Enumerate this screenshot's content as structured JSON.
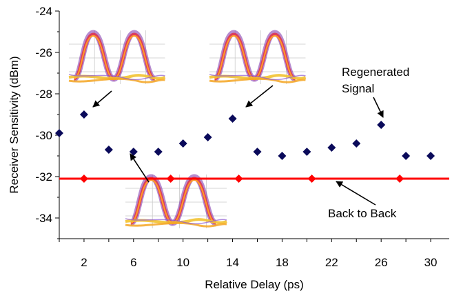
{
  "chart_data": {
    "type": "scatter",
    "title": "",
    "xlabel": "Relative Delay (ps)",
    "ylabel": "Receiver Sensitivity (dBm)",
    "xlim": [
      0,
      31.5
    ],
    "ylim": [
      -35,
      -24
    ],
    "x_ticks": [
      2,
      6,
      10,
      14,
      18,
      22,
      26,
      30
    ],
    "x_tick_labels": [
      "2",
      "6",
      "10",
      "14",
      "18",
      "22",
      "26",
      "30"
    ],
    "y_ticks": [
      -24,
      -26,
      -28,
      -30,
      -32,
      -34
    ],
    "y_tick_labels": [
      "-24",
      "-26",
      "-28",
      "-30",
      "-32",
      "-34"
    ],
    "grid": false,
    "series": [
      {
        "name": "Regenerated Signal",
        "marker": "diamond",
        "color": "#0a0a5a",
        "x": [
          0,
          2,
          4,
          6,
          8,
          10,
          12,
          14,
          16,
          18,
          20,
          22,
          24,
          26,
          28,
          30
        ],
        "y": [
          -29.9,
          -29.0,
          -30.7,
          -30.8,
          -30.8,
          -30.4,
          -30.1,
          -29.2,
          -30.8,
          -31.0,
          -30.8,
          -30.6,
          -30.4,
          -29.5,
          -31.0,
          -31.0
        ]
      },
      {
        "name": "Back to Back",
        "marker": "diamond",
        "line": true,
        "color": "#ff0000",
        "x": [
          2,
          9,
          14.5,
          20.4,
          27.5
        ],
        "y": [
          -32.1,
          -32.1,
          -32.1,
          -32.1,
          -32.1
        ]
      }
    ],
    "annotations": [
      {
        "lines": [
          "Regenerated",
          "Signal"
        ]
      },
      {
        "lines": [
          "Back to Back"
        ]
      }
    ],
    "inset_eye_diagrams": 3
  }
}
